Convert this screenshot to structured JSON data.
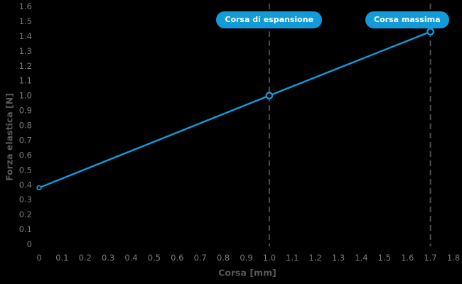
{
  "figure": {
    "background": "#000000"
  },
  "chart_data": {
    "type": "line",
    "title": "",
    "xlabel": "Corsa [mm]",
    "ylabel": "Forza elastica [N]",
    "x": [
      0,
      1.0,
      1.7
    ],
    "y": [
      0.38,
      1.0,
      1.43
    ],
    "xlim": [
      0,
      1.8
    ],
    "ylim": [
      0,
      1.6
    ],
    "xtick_step": 0.1,
    "ytick_step": 0.1,
    "grid": false,
    "legend_position": "none",
    "marker": "circle-open",
    "annotations": [
      {
        "label": "Corsa di espansione",
        "x": 1.0,
        "style": "dashed-vertical-line-with-pill"
      },
      {
        "label": "Corsa massima",
        "x": 1.7,
        "style": "dashed-vertical-line-with-pill"
      }
    ],
    "colors": {
      "line": "#129bd9",
      "marker_fill": "#000000",
      "tick_text": "#7a7a7a",
      "axis_title_text": "#595959",
      "annotation_line": "#4a4a4a",
      "pill_background": "#129bd9",
      "pill_text": "#ffffff",
      "background": "#000000"
    }
  }
}
